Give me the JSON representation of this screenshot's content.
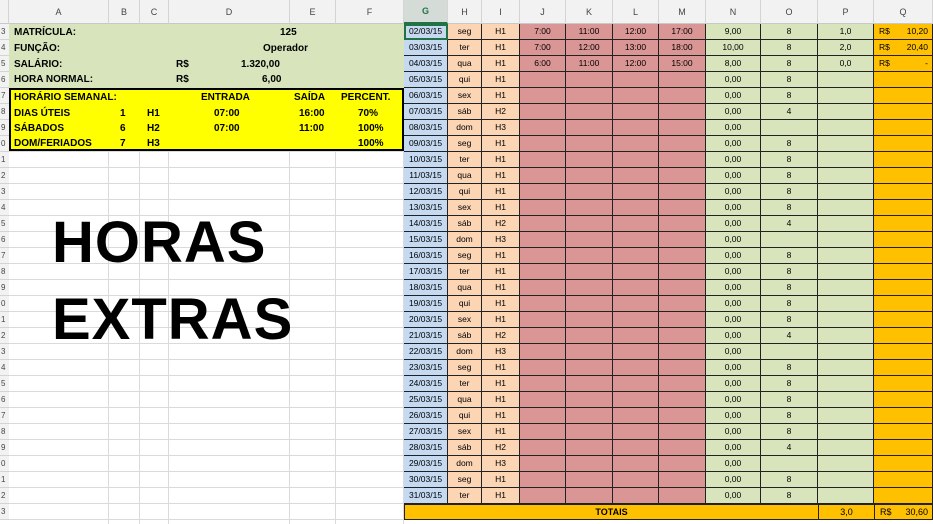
{
  "columns": [
    "A",
    "B",
    "C",
    "D",
    "E",
    "F",
    "G",
    "H",
    "I",
    "J",
    "K",
    "L",
    "M",
    "N",
    "O",
    "P",
    "Q"
  ],
  "selected_column": "G",
  "row_numbers": [
    "3",
    "4",
    "5",
    "6",
    "7",
    "8",
    "9",
    "0",
    "1",
    "2",
    "3",
    "4",
    "5",
    "6",
    "7",
    "8",
    "9",
    "0",
    "1",
    "2",
    "3",
    "4",
    "5",
    "6",
    "7",
    "8",
    "9",
    "0",
    "1",
    "2",
    "3"
  ],
  "info": {
    "matricula_label": "MATRÍCULA:",
    "matricula_value": "125",
    "funcao_label": "FUNÇÃO:",
    "funcao_value": "Operador",
    "salario_label": "SALÁRIO:",
    "salario_currency": "R$",
    "salario_value": "1.320,00",
    "hora_label": "HORA NORMAL:",
    "hora_currency": "R$",
    "hora_value": "6,00"
  },
  "schedule": {
    "headers": {
      "title": "HORÁRIO SEMANAL:",
      "entrada": "ENTRADA",
      "saida": "SAÍDA",
      "percent": "PERCENT."
    },
    "rows": [
      {
        "label": "DIAS ÚTEIS",
        "num": "1",
        "code": "H1",
        "entrada": "07:00",
        "saida": "16:00",
        "percent": "70%"
      },
      {
        "label": "SÁBADOS",
        "num": "6",
        "code": "H2",
        "entrada": "07:00",
        "saida": "11:00",
        "percent": "100%"
      },
      {
        "label": "DOM/FERIADOS",
        "num": "7",
        "code": "H3",
        "entrada": "",
        "saida": "",
        "percent": "100%"
      }
    ]
  },
  "title_line1": "HORAS",
  "title_line2": "EXTRAS",
  "days": [
    {
      "date": "02/03/15",
      "dow": "seg",
      "h": "H1",
      "j": "7:00",
      "k": "11:00",
      "l": "12:00",
      "m": "17:00",
      "n": "9,00",
      "o": "8",
      "p": "1,0",
      "qc": "R$",
      "q": "10,20"
    },
    {
      "date": "03/03/15",
      "dow": "ter",
      "h": "H1",
      "j": "7:00",
      "k": "12:00",
      "l": "13:00",
      "m": "18:00",
      "n": "10,00",
      "o": "8",
      "p": "2,0",
      "qc": "R$",
      "q": "20,40"
    },
    {
      "date": "04/03/15",
      "dow": "qua",
      "h": "H1",
      "j": "6:00",
      "k": "11:00",
      "l": "12:00",
      "m": "15:00",
      "n": "8,00",
      "o": "8",
      "p": "0,0",
      "qc": "R$",
      "q": "-"
    },
    {
      "date": "05/03/15",
      "dow": "qui",
      "h": "H1",
      "j": "",
      "k": "",
      "l": "",
      "m": "",
      "n": "0,00",
      "o": "8",
      "p": "",
      "qc": "",
      "q": ""
    },
    {
      "date": "06/03/15",
      "dow": "sex",
      "h": "H1",
      "j": "",
      "k": "",
      "l": "",
      "m": "",
      "n": "0,00",
      "o": "8",
      "p": "",
      "qc": "",
      "q": ""
    },
    {
      "date": "07/03/15",
      "dow": "sáb",
      "h": "H2",
      "j": "",
      "k": "",
      "l": "",
      "m": "",
      "n": "0,00",
      "o": "4",
      "p": "",
      "qc": "",
      "q": ""
    },
    {
      "date": "08/03/15",
      "dow": "dom",
      "h": "H3",
      "j": "",
      "k": "",
      "l": "",
      "m": "",
      "n": "0,00",
      "o": "",
      "p": "",
      "qc": "",
      "q": ""
    },
    {
      "date": "09/03/15",
      "dow": "seg",
      "h": "H1",
      "j": "",
      "k": "",
      "l": "",
      "m": "",
      "n": "0,00",
      "o": "8",
      "p": "",
      "qc": "",
      "q": ""
    },
    {
      "date": "10/03/15",
      "dow": "ter",
      "h": "H1",
      "j": "",
      "k": "",
      "l": "",
      "m": "",
      "n": "0,00",
      "o": "8",
      "p": "",
      "qc": "",
      "q": ""
    },
    {
      "date": "11/03/15",
      "dow": "qua",
      "h": "H1",
      "j": "",
      "k": "",
      "l": "",
      "m": "",
      "n": "0,00",
      "o": "8",
      "p": "",
      "qc": "",
      "q": ""
    },
    {
      "date": "12/03/15",
      "dow": "qui",
      "h": "H1",
      "j": "",
      "k": "",
      "l": "",
      "m": "",
      "n": "0,00",
      "o": "8",
      "p": "",
      "qc": "",
      "q": ""
    },
    {
      "date": "13/03/15",
      "dow": "sex",
      "h": "H1",
      "j": "",
      "k": "",
      "l": "",
      "m": "",
      "n": "0,00",
      "o": "8",
      "p": "",
      "qc": "",
      "q": ""
    },
    {
      "date": "14/03/15",
      "dow": "sáb",
      "h": "H2",
      "j": "",
      "k": "",
      "l": "",
      "m": "",
      "n": "0,00",
      "o": "4",
      "p": "",
      "qc": "",
      "q": ""
    },
    {
      "date": "15/03/15",
      "dow": "dom",
      "h": "H3",
      "j": "",
      "k": "",
      "l": "",
      "m": "",
      "n": "0,00",
      "o": "",
      "p": "",
      "qc": "",
      "q": ""
    },
    {
      "date": "16/03/15",
      "dow": "seg",
      "h": "H1",
      "j": "",
      "k": "",
      "l": "",
      "m": "",
      "n": "0,00",
      "o": "8",
      "p": "",
      "qc": "",
      "q": ""
    },
    {
      "date": "17/03/15",
      "dow": "ter",
      "h": "H1",
      "j": "",
      "k": "",
      "l": "",
      "m": "",
      "n": "0,00",
      "o": "8",
      "p": "",
      "qc": "",
      "q": ""
    },
    {
      "date": "18/03/15",
      "dow": "qua",
      "h": "H1",
      "j": "",
      "k": "",
      "l": "",
      "m": "",
      "n": "0,00",
      "o": "8",
      "p": "",
      "qc": "",
      "q": ""
    },
    {
      "date": "19/03/15",
      "dow": "qui",
      "h": "H1",
      "j": "",
      "k": "",
      "l": "",
      "m": "",
      "n": "0,00",
      "o": "8",
      "p": "",
      "qc": "",
      "q": ""
    },
    {
      "date": "20/03/15",
      "dow": "sex",
      "h": "H1",
      "j": "",
      "k": "",
      "l": "",
      "m": "",
      "n": "0,00",
      "o": "8",
      "p": "",
      "qc": "",
      "q": ""
    },
    {
      "date": "21/03/15",
      "dow": "sáb",
      "h": "H2",
      "j": "",
      "k": "",
      "l": "",
      "m": "",
      "n": "0,00",
      "o": "4",
      "p": "",
      "qc": "",
      "q": ""
    },
    {
      "date": "22/03/15",
      "dow": "dom",
      "h": "H3",
      "j": "",
      "k": "",
      "l": "",
      "m": "",
      "n": "0,00",
      "o": "",
      "p": "",
      "qc": "",
      "q": ""
    },
    {
      "date": "23/03/15",
      "dow": "seg",
      "h": "H1",
      "j": "",
      "k": "",
      "l": "",
      "m": "",
      "n": "0,00",
      "o": "8",
      "p": "",
      "qc": "",
      "q": ""
    },
    {
      "date": "24/03/15",
      "dow": "ter",
      "h": "H1",
      "j": "",
      "k": "",
      "l": "",
      "m": "",
      "n": "0,00",
      "o": "8",
      "p": "",
      "qc": "",
      "q": ""
    },
    {
      "date": "25/03/15",
      "dow": "qua",
      "h": "H1",
      "j": "",
      "k": "",
      "l": "",
      "m": "",
      "n": "0,00",
      "o": "8",
      "p": "",
      "qc": "",
      "q": ""
    },
    {
      "date": "26/03/15",
      "dow": "qui",
      "h": "H1",
      "j": "",
      "k": "",
      "l": "",
      "m": "",
      "n": "0,00",
      "o": "8",
      "p": "",
      "qc": "",
      "q": ""
    },
    {
      "date": "27/03/15",
      "dow": "sex",
      "h": "H1",
      "j": "",
      "k": "",
      "l": "",
      "m": "",
      "n": "0,00",
      "o": "8",
      "p": "",
      "qc": "",
      "q": ""
    },
    {
      "date": "28/03/15",
      "dow": "sáb",
      "h": "H2",
      "j": "",
      "k": "",
      "l": "",
      "m": "",
      "n": "0,00",
      "o": "4",
      "p": "",
      "qc": "",
      "q": ""
    },
    {
      "date": "29/03/15",
      "dow": "dom",
      "h": "H3",
      "j": "",
      "k": "",
      "l": "",
      "m": "",
      "n": "0,00",
      "o": "",
      "p": "",
      "qc": "",
      "q": ""
    },
    {
      "date": "30/03/15",
      "dow": "seg",
      "h": "H1",
      "j": "",
      "k": "",
      "l": "",
      "m": "",
      "n": "0,00",
      "o": "8",
      "p": "",
      "qc": "",
      "q": ""
    },
    {
      "date": "31/03/15",
      "dow": "ter",
      "h": "H1",
      "j": "",
      "k": "",
      "l": "",
      "m": "",
      "n": "0,00",
      "o": "8",
      "p": "",
      "qc": "",
      "q": ""
    }
  ],
  "totals": {
    "label": "TOTAIS",
    "p": "3,0",
    "qc": "R$",
    "q": "30,60"
  },
  "colors": {
    "date": "#c5d9f1",
    "dow": "#fcd5b4",
    "input": "#da9694",
    "green": "#d8e4bc",
    "orange": "#ffc000",
    "yellow": "#ffff00"
  }
}
